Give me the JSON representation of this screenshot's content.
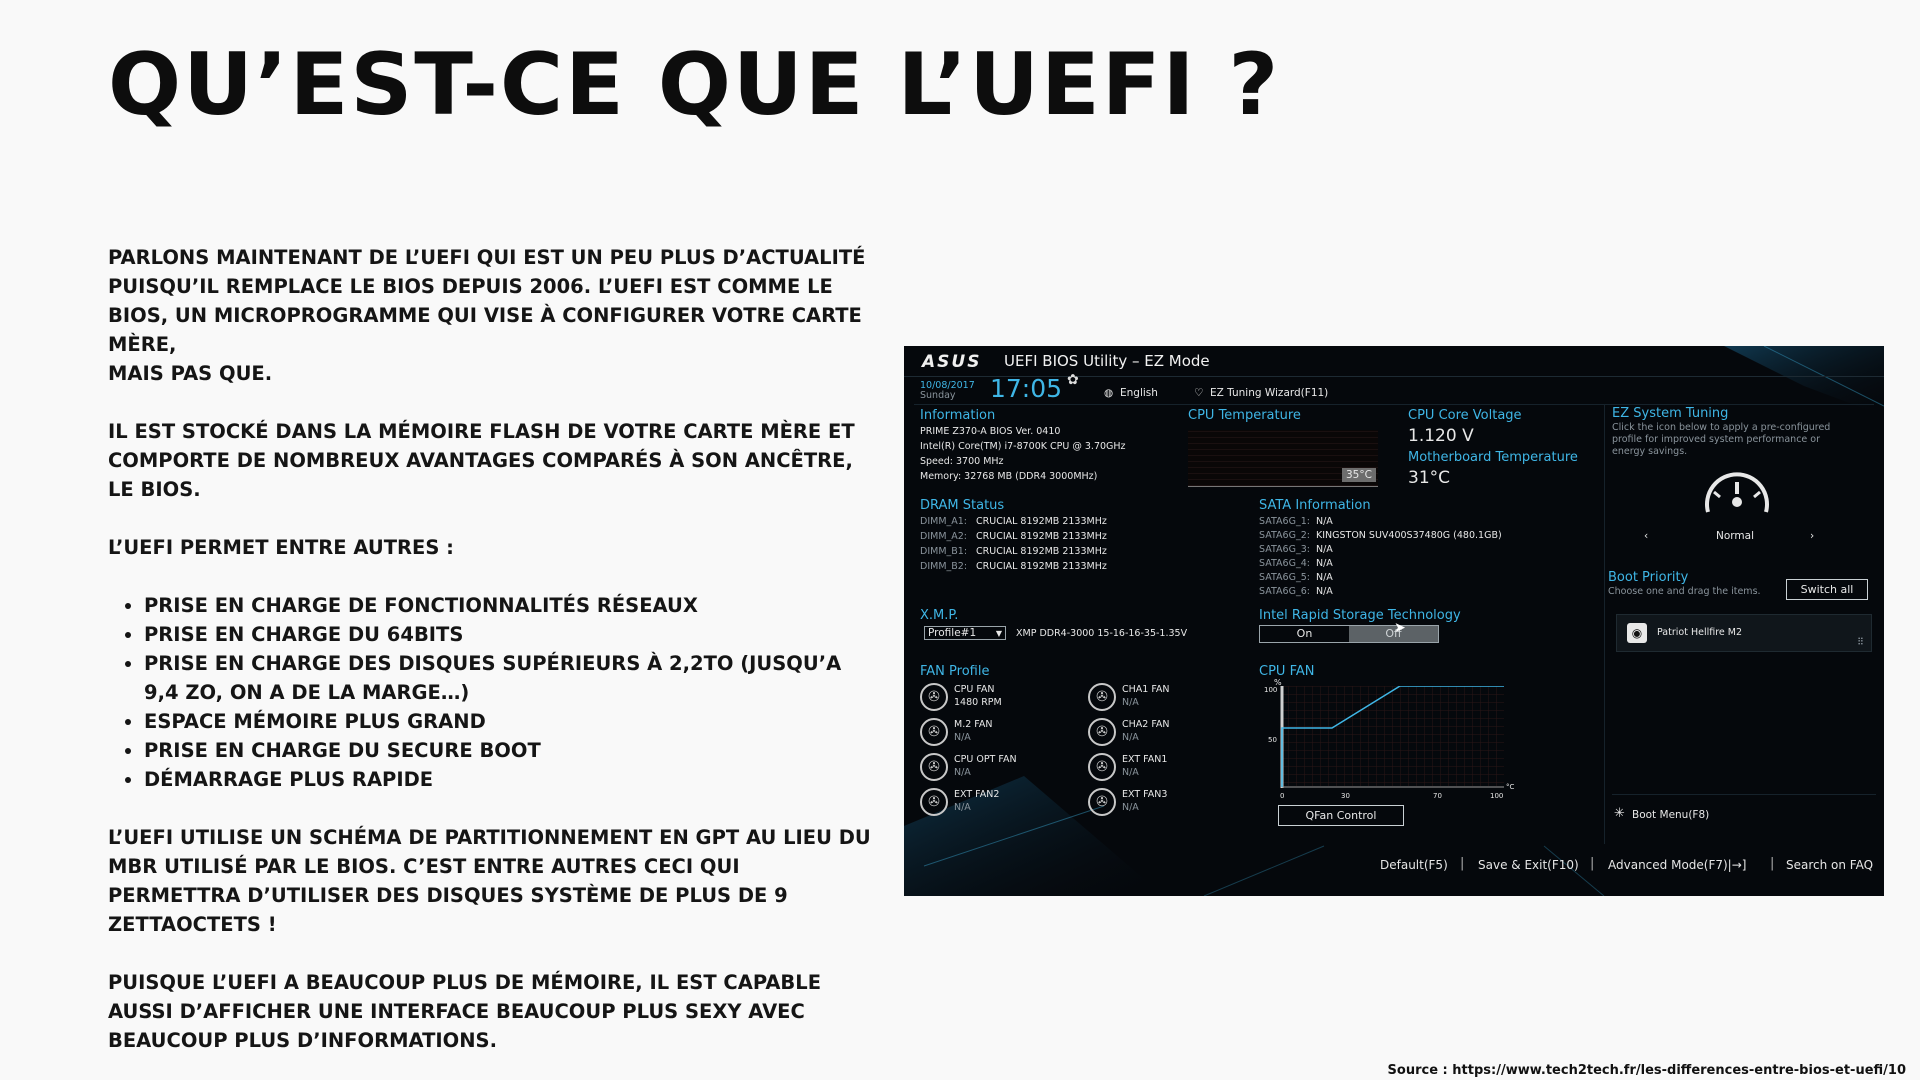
{
  "page": {
    "title": "QU’EST-CE QUE L’UEFI ?",
    "paragraphs": [
      "Parlons maintenant de l’UEFI qui est un peu plus d’actualité puisqu’il remplace le BIOS depuis 2006. L’UEFI est comme le BIOS, un microprogramme qui vise à configurer votre carte mère,",
      "mais pas que.",
      "Il est stocké dans la mémoire flash de votre carte mère et comporte de nombreux avantages comparés à son ancêtre, le BIOS.",
      "L’UEFI permet entre autres :",
      "L’UEFI utilise un schéma de partitionnement en GPT au lieu du MBR utilisé par le BIOS. C’est entre autres ceci qui permettra d’utiliser des disques système de plus de 9 zettaoctets !",
      "Puisque l’UEFI a beaucoup plus de mémoire, il est capable aussi d’afficher une interface beaucoup plus sexy avec beaucoup plus d’informations."
    ],
    "bullets": [
      "Prise en charge de fonctionnalités réseaux",
      "Prise en charge du 64bits",
      "Prise en charge des disques supérieurs à 2,2To (jusqu’a 9,4 Zo, on a de la marge…)",
      "Espace mémoire plus grand",
      "Prise en charge du secure boot",
      "Démarrage plus rapide"
    ],
    "source": "Source : https://www.tech2tech.fr/les-differences-entre-bios-et-uefi/10"
  },
  "bios": {
    "logo": "ASUS",
    "title": "UEFI BIOS Utility – EZ Mode",
    "date": "10/08/2017",
    "day": "Sunday",
    "time": "17:05",
    "language": "English",
    "wizard": "EZ Tuning Wizard(F11)",
    "information": {
      "heading": "Information",
      "lines": [
        "PRIME Z370-A    BIOS Ver. 0410",
        "Intel(R) Core(TM) i7-8700K CPU @ 3.70GHz",
        "Speed: 3700 MHz",
        "Memory: 32768 MB (DDR4 3000MHz)"
      ]
    },
    "cpu_temperature": {
      "heading": "CPU Temperature",
      "value": "35°C"
    },
    "cpu_core_voltage": {
      "heading": "CPU Core Voltage",
      "value": "1.120 V"
    },
    "mb_temperature": {
      "heading": "Motherboard Temperature",
      "value": "31°C"
    },
    "ez_tuning": {
      "heading": "EZ System Tuning",
      "desc": [
        "Click the icon below to apply a pre-configured",
        "profile for improved system performance or",
        "energy savings."
      ],
      "mode": "Normal"
    },
    "dram": {
      "heading": "DRAM Status",
      "slots": [
        {
          "slot": "DIMM_A1:",
          "value": "CRUCIAL 8192MB 2133MHz"
        },
        {
          "slot": "DIMM_A2:",
          "value": "CRUCIAL 8192MB 2133MHz"
        },
        {
          "slot": "DIMM_B1:",
          "value": "CRUCIAL 8192MB 2133MHz"
        },
        {
          "slot": "DIMM_B2:",
          "value": "CRUCIAL 8192MB 2133MHz"
        }
      ]
    },
    "sata": {
      "heading": "SATA Information",
      "ports": [
        {
          "port": "SATA6G_1:",
          "value": "N/A"
        },
        {
          "port": "SATA6G_2:",
          "value": "KINGSTON SUV400S37480G (480.1GB)"
        },
        {
          "port": "SATA6G_3:",
          "value": "N/A"
        },
        {
          "port": "SATA6G_4:",
          "value": "N/A"
        },
        {
          "port": "SATA6G_5:",
          "value": "N/A"
        },
        {
          "port": "SATA6G_6:",
          "value": "N/A"
        }
      ]
    },
    "boot_priority": {
      "heading": "Boot Priority",
      "desc": "Choose one and drag the items.",
      "switch_all": "Switch all",
      "device": "Patriot Hellfire M2"
    },
    "xmp": {
      "heading": "X.M.P.",
      "selected": "Profile#1",
      "desc": "XMP DDR4-3000 15-16-16-35-1.35V"
    },
    "irst": {
      "heading": "Intel Rapid Storage Technology",
      "on": "On",
      "off": "Off"
    },
    "fan_profile": {
      "heading": "FAN Profile",
      "fans": [
        {
          "name": "CPU FAN",
          "value": "1480 RPM"
        },
        {
          "name": "CHA1 FAN",
          "value": "N/A"
        },
        {
          "name": "M.2 FAN",
          "value": "N/A"
        },
        {
          "name": "CHA2 FAN",
          "value": "N/A"
        },
        {
          "name": "CPU OPT FAN",
          "value": "N/A"
        },
        {
          "name": "EXT FAN1",
          "value": "N/A"
        },
        {
          "name": "EXT FAN2",
          "value": "N/A"
        },
        {
          "name": "EXT FAN3",
          "value": "N/A"
        }
      ]
    },
    "cpu_fan": {
      "heading": "CPU FAN",
      "y_unit": "%",
      "x_unit": "°C",
      "y_ticks": [
        "100",
        "50"
      ],
      "x_ticks": [
        "0",
        "30",
        "70",
        "100"
      ],
      "qfan": "QFan Control"
    },
    "boot_menu": "Boot Menu(F8)",
    "footer": [
      "Default(F5)",
      "Save & Exit(F10)",
      "Advanced Mode(F7)|→]",
      "Search on FAQ"
    ],
    "colors": {
      "accent": "#3fb6e6",
      "background": "#05080c"
    }
  }
}
